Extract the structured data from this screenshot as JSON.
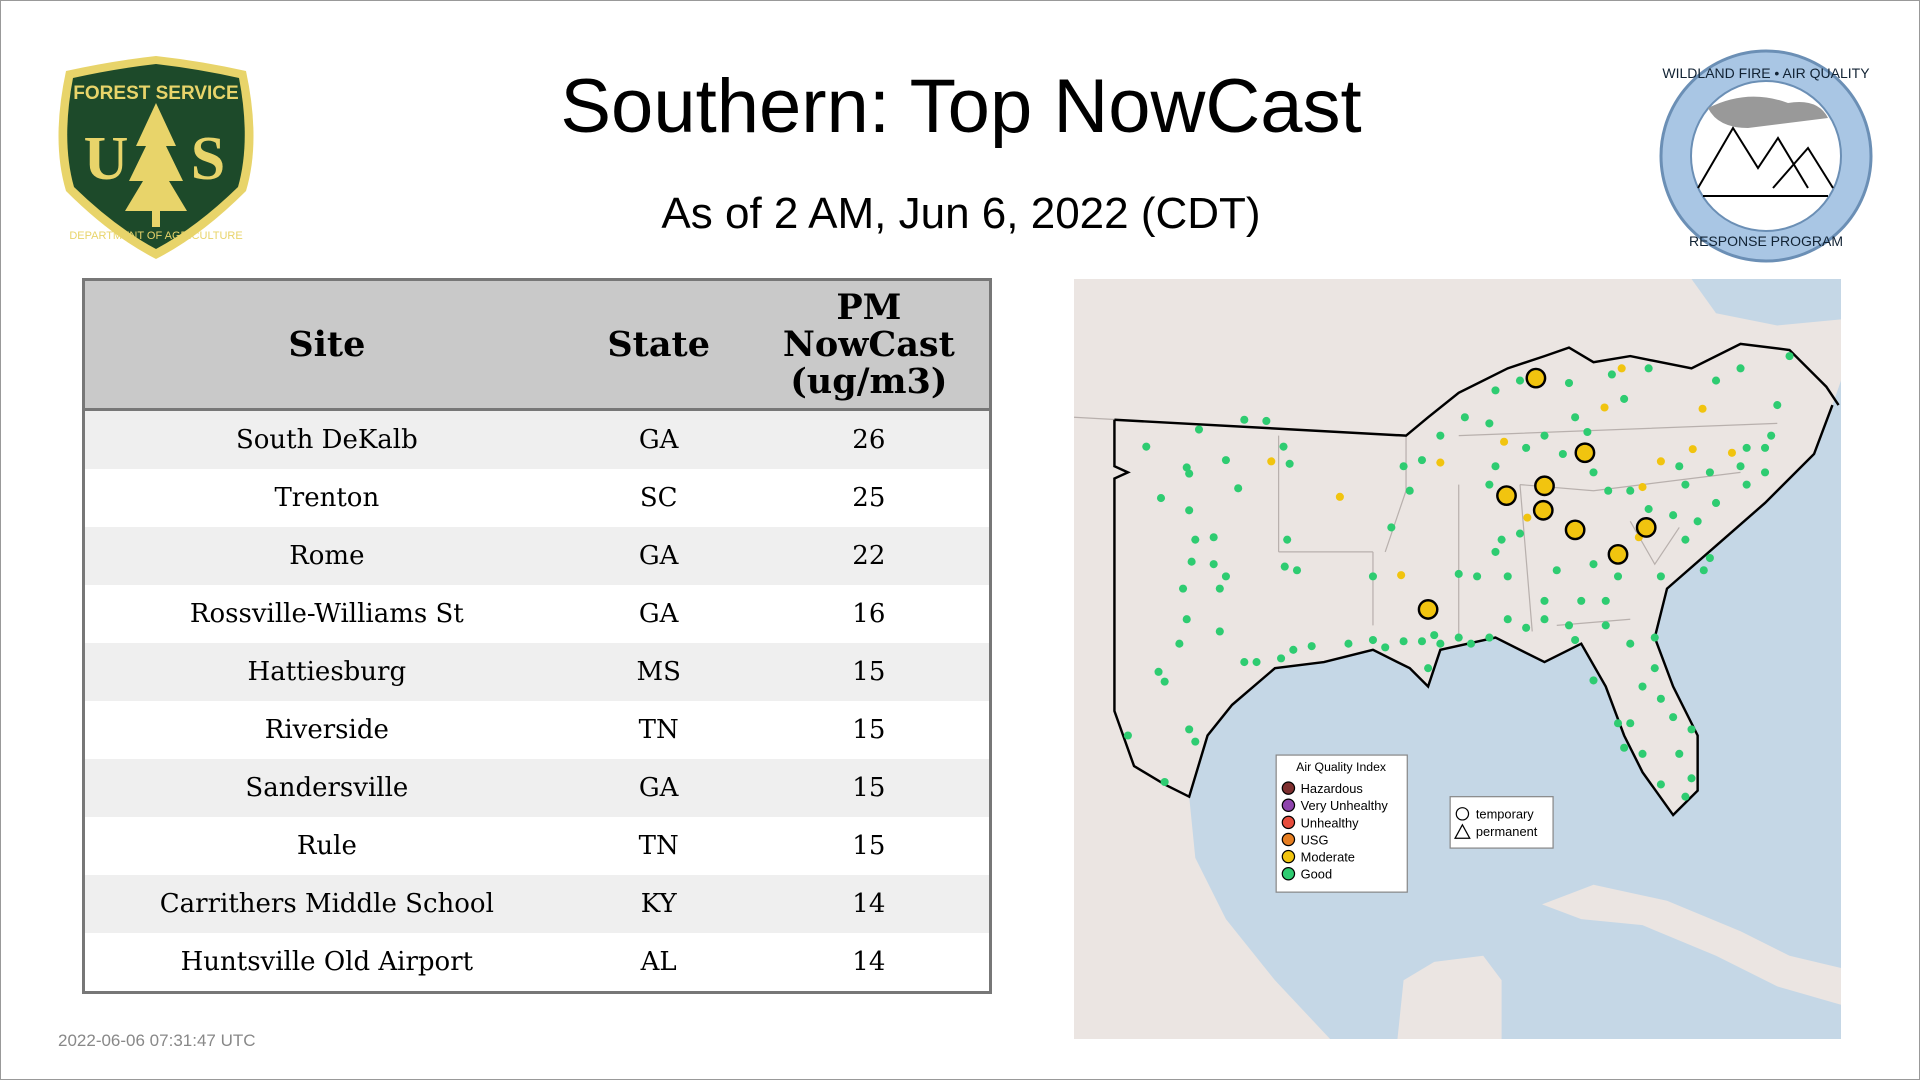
{
  "header": {
    "title": "Southern: Top NowCast",
    "subtitle": "As of  2 AM, Jun  6, 2022 (CDT)"
  },
  "logos": {
    "left": "FOREST SERVICE U S DEPARTMENT OF AGRICULTURE",
    "right": "WILDLAND FIRE • AIR QUALITY RESPONSE PROGRAM"
  },
  "table": {
    "headers": {
      "site": "Site",
      "state": "State",
      "pm1": "PM",
      "pm2": "NowCast",
      "pm3": "(ug/m3)"
    },
    "rows": [
      {
        "site": "South DeKalb",
        "state": "GA",
        "value": "26"
      },
      {
        "site": "Trenton",
        "state": "SC",
        "value": "25"
      },
      {
        "site": "Rome",
        "state": "GA",
        "value": "22"
      },
      {
        "site": "Rossville-Williams St",
        "state": "GA",
        "value": "16"
      },
      {
        "site": "Hattiesburg",
        "state": "MS",
        "value": "15"
      },
      {
        "site": "Riverside",
        "state": "TN",
        "value": "15"
      },
      {
        "site": "Sandersville",
        "state": "GA",
        "value": "15"
      },
      {
        "site": "Rule",
        "state": "TN",
        "value": "15"
      },
      {
        "site": "Carrithers Middle School",
        "state": "KY",
        "value": "14"
      },
      {
        "site": "Huntsville Old Airport",
        "state": "AL",
        "value": "14"
      }
    ]
  },
  "legend": {
    "title": "Air Quality Index",
    "items": [
      {
        "label": "Hazardous",
        "color": "#7e2f2f"
      },
      {
        "label": "Very Unhealthy",
        "color": "#8e44ad"
      },
      {
        "label": "Unhealthy",
        "color": "#e74c3c"
      },
      {
        "label": "USG",
        "color": "#e67e22"
      },
      {
        "label": "Moderate",
        "color": "#f1c40f"
      },
      {
        "label": "Good",
        "color": "#2ecc71"
      }
    ],
    "shapes": [
      {
        "label": "temporary",
        "shape": "circle"
      },
      {
        "label": "permanent",
        "shape": "triangle"
      }
    ]
  },
  "chart_data": {
    "type": "scatter",
    "title": "Southern: Top NowCast map",
    "categories": [
      "Good",
      "Moderate"
    ],
    "highlighted_sites_count": 9
  },
  "timestamp": "2022-06-06 07:31:47 UTC"
}
